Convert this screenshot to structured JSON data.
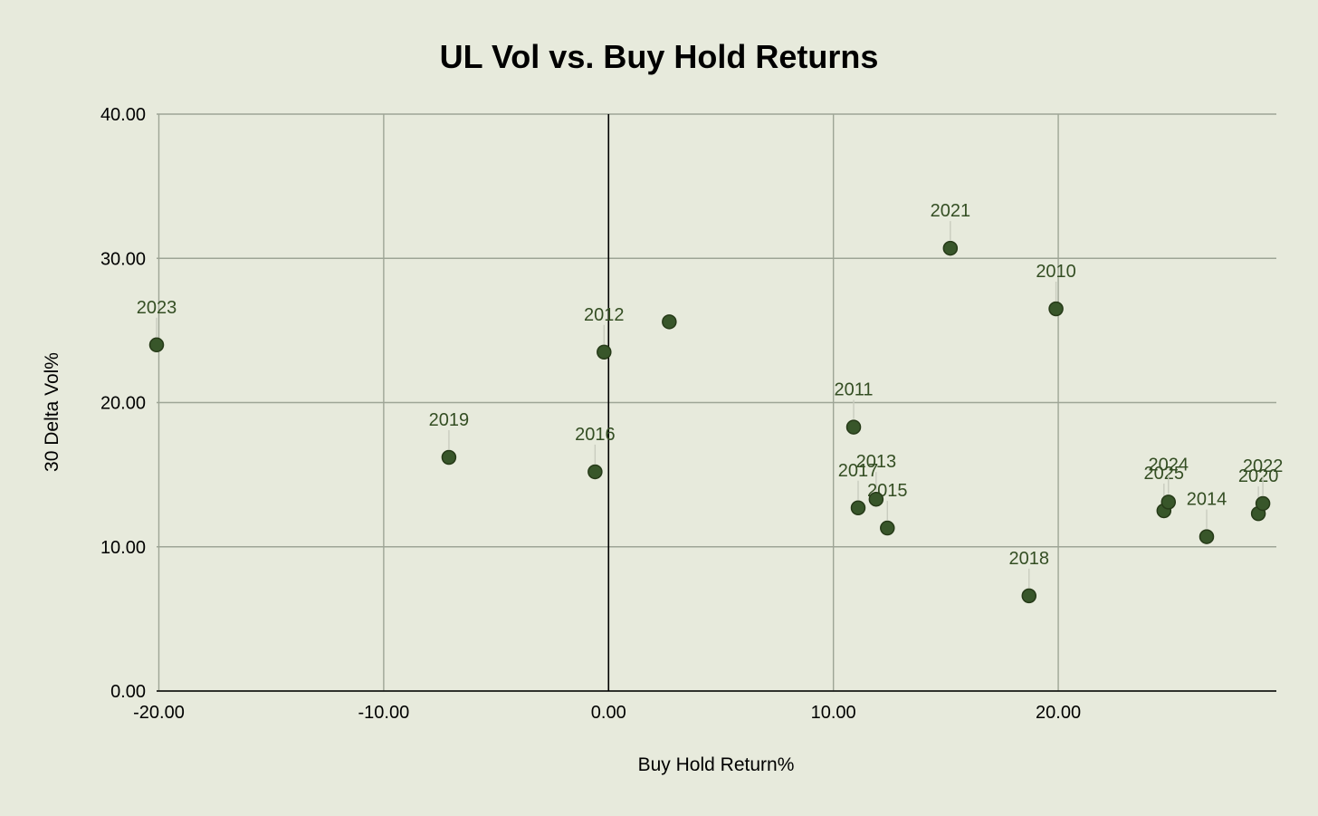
{
  "chart_data": {
    "type": "scatter",
    "title": "UL Vol vs. Buy Hold Returns",
    "xlabel": "Buy Hold Return%",
    "ylabel": "30 Delta Vol%",
    "xlim": [
      -20.1,
      29.7
    ],
    "ylim": [
      0,
      40
    ],
    "x_ticks": [
      -20,
      -10,
      0,
      10,
      20
    ],
    "y_ticks": [
      0,
      10,
      20,
      30,
      40
    ],
    "tick_decimals": 2,
    "grid": true,
    "legend": "none",
    "point_color": "#38562a",
    "label_color": "#344e23",
    "points": [
      {
        "x": -20.1,
        "y": 24.0,
        "label": "2023"
      },
      {
        "x": -7.1,
        "y": 16.2,
        "label": "2019"
      },
      {
        "x": -0.6,
        "y": 15.2,
        "label": "2016"
      },
      {
        "x": -0.2,
        "y": 23.5,
        "label": "2012"
      },
      {
        "x": 2.7,
        "y": 25.6,
        "label": ""
      },
      {
        "x": 10.9,
        "y": 18.3,
        "label": "2011"
      },
      {
        "x": 11.1,
        "y": 12.7,
        "label": "2017"
      },
      {
        "x": 11.9,
        "y": 13.3,
        "label": "2013"
      },
      {
        "x": 12.4,
        "y": 11.3,
        "label": "2015"
      },
      {
        "x": 15.2,
        "y": 30.7,
        "label": "2021"
      },
      {
        "x": 18.7,
        "y": 6.6,
        "label": "2018"
      },
      {
        "x": 19.9,
        "y": 26.5,
        "label": "2010"
      },
      {
        "x": 24.7,
        "y": 12.5,
        "label": "2025"
      },
      {
        "x": 24.9,
        "y": 13.1,
        "label": "2024"
      },
      {
        "x": 26.6,
        "y": 10.7,
        "label": "2014"
      },
      {
        "x": 28.9,
        "y": 12.3,
        "label": "2020"
      },
      {
        "x": 29.1,
        "y": 13.0,
        "label": "2022"
      }
    ]
  }
}
